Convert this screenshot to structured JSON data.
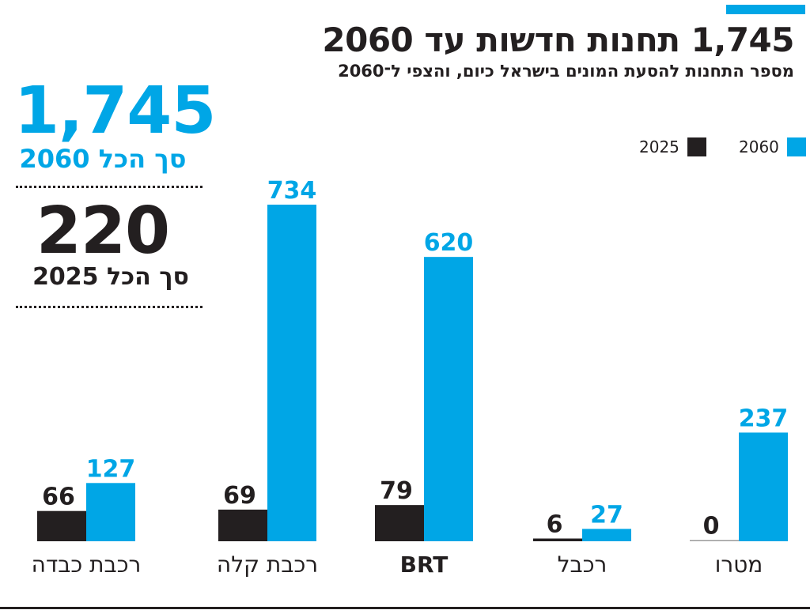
{
  "header": {
    "title": "1,745 תחנות חדשות עד 2060",
    "subtitle": "מספר התחנות להסעת המונים בישראל כיום, והצפי ל־2060"
  },
  "summary": {
    "total_2060": "1,745",
    "total_2060_label": "סך הכל 2060",
    "total_2025": "220",
    "total_2025_label": "סך הכל 2025"
  },
  "colors": {
    "s2025": "#231f20",
    "s2060": "#00a6e6"
  },
  "chart_data": {
    "type": "bar",
    "title": "1,745 תחנות חדשות עד 2060",
    "subtitle": "מספר התחנות להסעת המונים בישראל כיום, והצפי ל־2060",
    "categories": [
      "רכבת כבדה",
      "רכבת קלה",
      "BRT",
      "רכבל",
      "מטרו"
    ],
    "series": [
      {
        "name": "2025",
        "values": [
          66,
          69,
          79,
          6,
          0
        ]
      },
      {
        "name": "2060",
        "values": [
          127,
          734,
          620,
          27,
          237
        ]
      }
    ],
    "legend": {
      "position": "top-right",
      "entries": [
        "2060",
        "2025"
      ]
    },
    "ylim": [
      0,
      734
    ],
    "grid": false,
    "xlabel": "",
    "ylabel": ""
  }
}
